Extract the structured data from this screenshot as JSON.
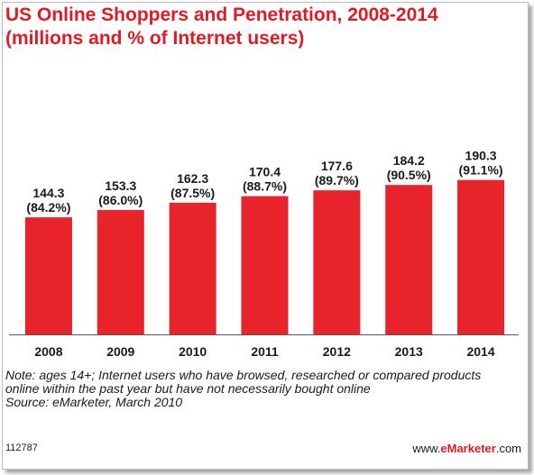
{
  "title_line1": "US Online Shoppers and Penetration, 2008-2014",
  "title_line2": "(millions and % of Internet users)",
  "colors": {
    "bar": "#e8242a",
    "title": "#e01b24",
    "text": "#1a1a1a"
  },
  "chart_data": {
    "type": "bar",
    "title": "US Online Shoppers and Penetration, 2008-2014",
    "subtitle": "(millions and % of Internet users)",
    "categories": [
      "2008",
      "2009",
      "2010",
      "2011",
      "2012",
      "2013",
      "2014"
    ],
    "values": [
      144.3,
      153.3,
      162.3,
      170.4,
      177.6,
      184.2,
      190.3
    ],
    "labels": [
      "144.3",
      "153.3",
      "162.3",
      "170.4",
      "177.6",
      "184.2",
      "190.3"
    ],
    "penetration_labels": [
      "(84.2%)",
      "(86.0%)",
      "(87.5%)",
      "(88.7%)",
      "(89.7%)",
      "(90.5%)",
      "(91.1%)"
    ],
    "penetration": [
      84.2,
      86.0,
      87.5,
      88.7,
      89.7,
      90.5,
      91.1
    ],
    "xlabel": "",
    "ylabel": "",
    "grid": false,
    "legend": "none"
  },
  "note_line": "Note: ages 14+; Internet users who have browsed, researched or compared products online within the past year but have not necessarily bought online",
  "source_line": "Source: eMarketer, March 2010",
  "footer_id": "112787",
  "brand_prefix": "www.",
  "brand_name": "eMarketer",
  "brand_suffix": ".com"
}
